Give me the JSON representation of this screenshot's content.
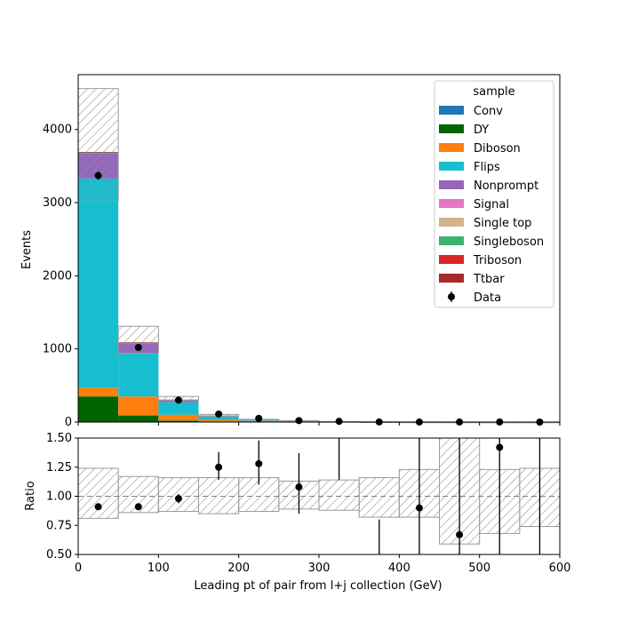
{
  "chart_data": [
    {
      "type": "bar",
      "subtype": "stacked-histogram",
      "ylabel": "Events",
      "ylim": [
        0,
        4750
      ],
      "xlim": [
        0,
        600
      ],
      "yticks": [
        0,
        1000,
        2000,
        3000,
        4000
      ],
      "bin_edges": [
        0,
        50,
        100,
        150,
        200,
        250,
        300,
        350,
        400,
        450,
        500,
        550,
        600
      ],
      "series": [
        {
          "name": "DY",
          "color": "#006400",
          "values": [
            350,
            90,
            20,
            5,
            2,
            1,
            0,
            0,
            0,
            0,
            0,
            0
          ]
        },
        {
          "name": "Diboson",
          "color": "#ff7f0e",
          "values": [
            120,
            260,
            80,
            25,
            12,
            8,
            3,
            2,
            1,
            1,
            0,
            0
          ]
        },
        {
          "name": "Flips",
          "color": "#17becf",
          "values": [
            2860,
            590,
            170,
            45,
            12,
            4,
            2,
            1,
            0,
            0,
            0,
            0
          ]
        },
        {
          "name": "Nonprompt",
          "color": "#9467bd",
          "values": [
            350,
            140,
            30,
            8,
            3,
            1,
            1,
            0,
            0,
            0,
            0,
            0
          ]
        },
        {
          "name": "Single top",
          "color": "#d2b48c",
          "values": [
            4,
            3,
            2,
            2,
            2,
            1,
            1,
            0,
            0,
            0,
            0,
            0
          ]
        },
        {
          "name": "Singleboson",
          "color": "#3cb371",
          "values": [
            4,
            2,
            1,
            1,
            0,
            0,
            0,
            0,
            0,
            0,
            0,
            0
          ]
        },
        {
          "name": "Ttbar",
          "color": "#a52a2a",
          "values": [
            5,
            5,
            3,
            2,
            1,
            1,
            0,
            0,
            0,
            0,
            0,
            0
          ]
        }
      ],
      "mc_uncertainty": {
        "up": [
          4560,
          1310,
          350,
          105,
          38,
          19,
          8,
          4,
          1.5,
          1.2,
          0.2,
          0.2
        ],
        "down": [
          3020,
          940,
          300,
          85,
          31,
          16,
          6,
          3,
          0.5,
          0.4,
          0,
          0
        ]
      },
      "data": {
        "name": "Data",
        "x": [
          25,
          75,
          125,
          175,
          225,
          275,
          325,
          375,
          425,
          475,
          525,
          575
        ],
        "y": [
          3370,
          1020,
          300,
          110,
          50,
          20,
          10,
          2,
          1,
          1,
          1,
          0
        ],
        "err": [
          58,
          32,
          17,
          10,
          7,
          4.5,
          3.2,
          1.4,
          1,
          1,
          1,
          0
        ]
      },
      "legend": {
        "title": "sample",
        "placement": "top-right",
        "entries": [
          {
            "name": "Conv",
            "color": "#1f77b4"
          },
          {
            "name": "DY",
            "color": "#006400"
          },
          {
            "name": "Diboson",
            "color": "#ff7f0e"
          },
          {
            "name": "Flips",
            "color": "#17becf"
          },
          {
            "name": "Nonprompt",
            "color": "#9467bd"
          },
          {
            "name": "Signal",
            "color": "#e377c2"
          },
          {
            "name": "Single top",
            "color": "#d2b48c"
          },
          {
            "name": "Singleboson",
            "color": "#3cb371"
          },
          {
            "name": "Triboson",
            "color": "#d62728"
          },
          {
            "name": "Ttbar",
            "color": "#a52a2a"
          },
          {
            "name": "Data",
            "color": "#000000"
          }
        ]
      }
    },
    {
      "type": "scatter",
      "subtype": "ratio-panel",
      "xlabel": "Leading pt of pair from l+j collection (GeV)",
      "ylabel": "Ratio",
      "xlim": [
        0,
        600
      ],
      "ylim": [
        0.5,
        1.5
      ],
      "xticks": [
        0,
        100,
        200,
        300,
        400,
        500,
        600
      ],
      "yticks": [
        0.5,
        0.75,
        1.0,
        1.25,
        1.5
      ],
      "ytick_labels": [
        "0.50",
        "0.75",
        "1.00",
        "1.25",
        "1.50"
      ],
      "reference_line": 1.0,
      "band": {
        "up": [
          1.24,
          1.17,
          1.16,
          1.16,
          1.16,
          1.13,
          1.14,
          1.16,
          1.23,
          1.5,
          1.23,
          1.24
        ],
        "down": [
          0.81,
          0.86,
          0.87,
          0.85,
          0.87,
          0.89,
          0.88,
          0.82,
          0.82,
          0.59,
          0.68,
          0.74
        ]
      },
      "points": {
        "x": [
          25,
          75,
          125,
          175,
          225,
          275,
          325,
          375,
          425,
          475,
          525,
          575
        ],
        "y": [
          0.91,
          0.91,
          0.98,
          1.25,
          1.28,
          1.08,
          null,
          null,
          0.9,
          0.67,
          1.42,
          null
        ],
        "up": [
          0.93,
          0.93,
          1.02,
          1.38,
          1.48,
          1.37,
          1.5,
          0.8,
          1.5,
          1.5,
          1.5,
          1.5
        ],
        "down": [
          0.89,
          0.89,
          0.94,
          1.14,
          1.1,
          0.85,
          1.14,
          0.5,
          0.5,
          0.5,
          0.5,
          0.5
        ]
      }
    }
  ]
}
